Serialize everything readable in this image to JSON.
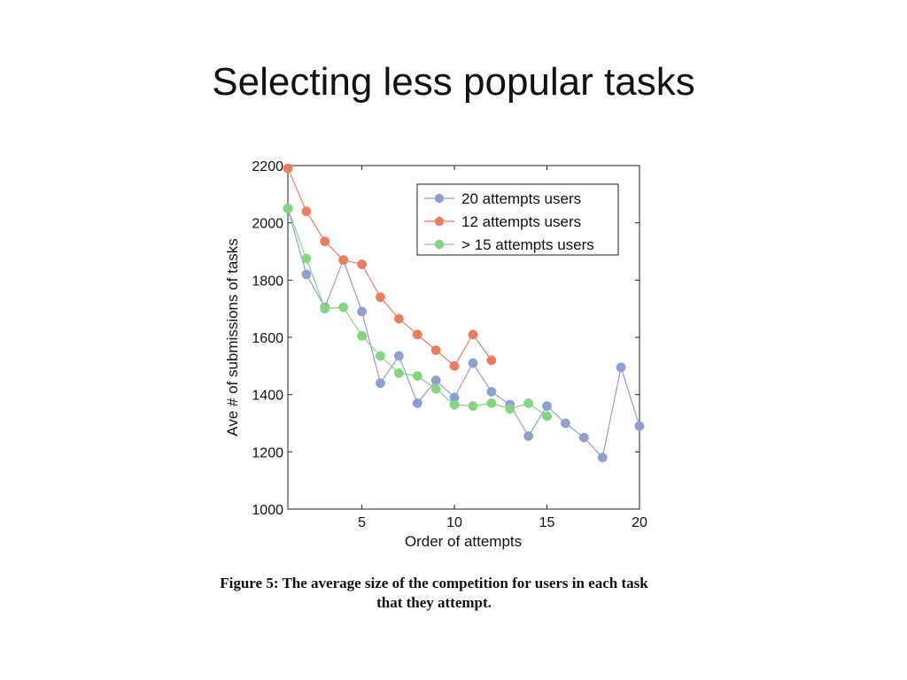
{
  "slide": {
    "title": "Selecting less popular tasks"
  },
  "caption": {
    "line1": "Figure 5: The average size of the competition for users in each task",
    "line2": "that they attempt."
  },
  "chart_data": {
    "type": "line",
    "xlabel": "Order of attempts",
    "ylabel": "Ave # of submissions of tasks",
    "xlim": [
      1,
      20
    ],
    "ylim": [
      1000,
      2200
    ],
    "x_ticks": [
      5,
      10,
      15,
      20
    ],
    "y_ticks": [
      1000,
      1200,
      1400,
      1600,
      1800,
      2000,
      2200
    ],
    "grid": false,
    "legend_position": "top-right",
    "series": [
      {
        "name": "20 attempts users",
        "color": "#8f9fd2",
        "x": [
          1,
          2,
          3,
          4,
          5,
          6,
          7,
          8,
          9,
          10,
          11,
          12,
          13,
          14,
          15,
          16,
          17,
          18,
          19,
          20
        ],
        "values": [
          2050,
          1820,
          1705,
          1870,
          1690,
          1440,
          1535,
          1370,
          1450,
          1390,
          1510,
          1410,
          1365,
          1255,
          1360,
          1300,
          1250,
          1180,
          1495,
          1290
        ]
      },
      {
        "name": "12 attempts users",
        "color": "#e97d5e",
        "x": [
          1,
          2,
          3,
          4,
          5,
          6,
          7,
          8,
          9,
          10,
          11,
          12
        ],
        "values": [
          2190,
          2040,
          1935,
          1870,
          1855,
          1740,
          1665,
          1610,
          1555,
          1500,
          1610,
          1520
        ]
      },
      {
        "name": "> 15 attempts users",
        "color": "#83d57f",
        "x": [
          1,
          2,
          3,
          4,
          5,
          6,
          7,
          8,
          9,
          10,
          11,
          12,
          13,
          14,
          15
        ],
        "values": [
          2050,
          1875,
          1700,
          1705,
          1605,
          1535,
          1475,
          1465,
          1420,
          1365,
          1360,
          1370,
          1350,
          1370,
          1325
        ]
      }
    ]
  }
}
